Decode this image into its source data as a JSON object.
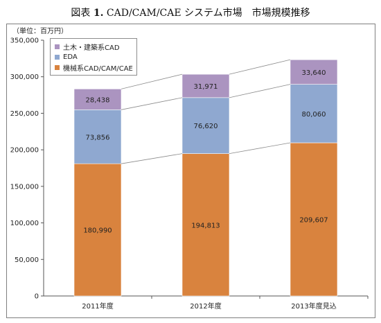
{
  "figure": {
    "prefix": "図表",
    "number": "1.",
    "title": "CAD/CAM/CAE システム市場　市場規模推移"
  },
  "chart_data": {
    "type": "bar",
    "stacked": true,
    "unit_label": "（単位：百万円）",
    "categories": [
      "2011年度",
      "2012年度",
      "2013年度見込"
    ],
    "series": [
      {
        "name": "機械系CAD/CAM/CAE",
        "color": "#d9833e",
        "values": [
          180990,
          194813,
          209607
        ]
      },
      {
        "name": "EDA",
        "color": "#8fa8d0",
        "values": [
          73856,
          76620,
          80060
        ]
      },
      {
        "name": "土木・建築系CAD",
        "color": "#ab94c0",
        "values": [
          28438,
          31971,
          33640
        ]
      }
    ],
    "ylim": [
      0,
      350000
    ],
    "yticks": [
      "0",
      "50,000",
      "100,000",
      "150,000",
      "200,000",
      "250,000",
      "300,000",
      "350,000"
    ],
    "data_labels": [
      [
        "180,990",
        "194,813",
        "209,607"
      ],
      [
        "73,856",
        "76,620",
        "80,060"
      ],
      [
        "28,438",
        "31,971",
        "33,640"
      ]
    ],
    "legend_order": [
      2,
      1,
      0
    ],
    "legend_position": "top-left",
    "grid": false,
    "series_lines": true
  }
}
